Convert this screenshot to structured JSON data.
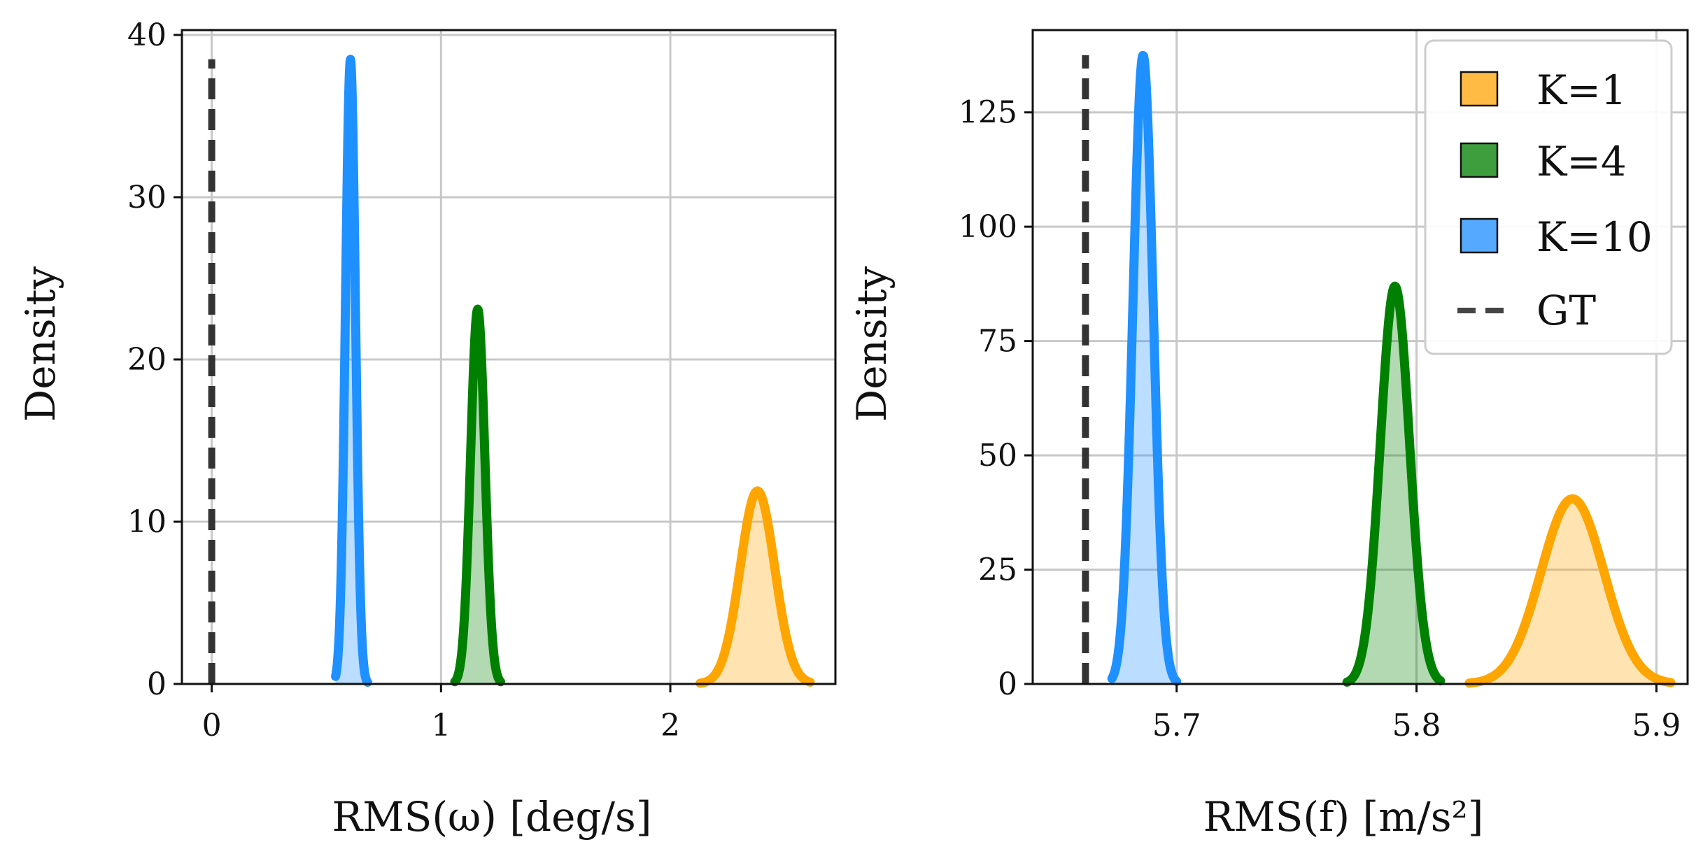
{
  "chart_data": [
    {
      "type": "area",
      "subtype": "density",
      "xlabel": "RMS(ω) [deg/s]",
      "ylabel": "Density",
      "xlim": [
        -0.13,
        2.72
      ],
      "ylim": [
        0,
        40.3
      ],
      "xticks": [
        0,
        1,
        2
      ],
      "xtick_labels": [
        "0",
        "1",
        "2"
      ],
      "yticks": [
        0,
        10,
        20,
        30,
        40
      ],
      "ytick_labels": [
        "0",
        "10",
        "20",
        "30",
        "40"
      ],
      "grid": true,
      "legend": null,
      "series": [
        {
          "label": "K=1",
          "color": "#FFA500",
          "mean": 2.38,
          "peak": 11.9,
          "x_range": [
            2.13,
            2.61
          ]
        },
        {
          "label": "K=4",
          "color": "#008000",
          "mean": 1.16,
          "peak": 23.1,
          "x_range": [
            1.06,
            1.26
          ]
        },
        {
          "label": "K=10",
          "color": "#1E90FF",
          "mean": 0.605,
          "peak": 38.5,
          "x_range": [
            0.54,
            0.68
          ]
        }
      ],
      "ground_truth": {
        "label": "GT",
        "x": 0.0,
        "color": "#333333"
      }
    },
    {
      "type": "area",
      "subtype": "density",
      "xlabel": "RMS(f) [m/s²]",
      "ylabel": "Density",
      "xlim": [
        5.64,
        5.913
      ],
      "ylim": [
        0,
        143
      ],
      "xticks": [
        5.7,
        5.8,
        5.9
      ],
      "xtick_labels": [
        "5.7",
        "5.8",
        "5.9"
      ],
      "yticks": [
        0,
        25,
        50,
        75,
        100,
        125
      ],
      "ytick_labels": [
        "0",
        "25",
        "50",
        "75",
        "100",
        "125"
      ],
      "grid": true,
      "legend": "top-right",
      "series": [
        {
          "label": "K=1",
          "color": "#FFA500",
          "mean": 5.865,
          "peak": 40.5,
          "x_range": [
            5.822,
            5.906
          ]
        },
        {
          "label": "K=4",
          "color": "#008000",
          "mean": 5.791,
          "peak": 87.0,
          "x_range": [
            5.771,
            5.81
          ]
        },
        {
          "label": "K=10",
          "color": "#1E90FF",
          "mean": 5.686,
          "peak": 137.5,
          "x_range": [
            5.673,
            5.7
          ]
        }
      ],
      "ground_truth": {
        "label": "GT",
        "x": 5.662,
        "color": "#333333"
      }
    }
  ],
  "legend": {
    "entries": [
      {
        "label": "K=1",
        "swatch": "#FFBB44",
        "kind": "patch"
      },
      {
        "label": "K=4",
        "swatch": "#3E9E3E",
        "kind": "patch"
      },
      {
        "label": "K=10",
        "swatch": "#55AAFF",
        "kind": "patch"
      },
      {
        "label": "GT",
        "swatch": "#444444",
        "kind": "dashed-line"
      }
    ]
  }
}
